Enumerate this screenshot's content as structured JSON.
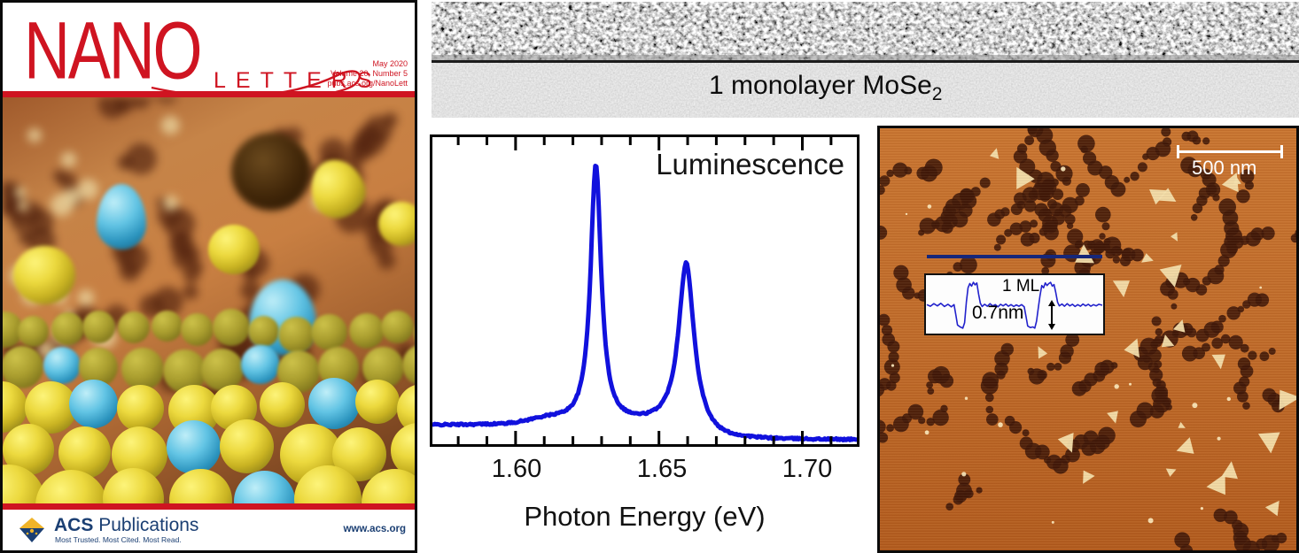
{
  "colors": {
    "nano_red": "#cf1421",
    "acs_navy": "#1b3f73",
    "curve_blue": "#1111dd",
    "afm_base": "#c06a28",
    "afm_pit": "#3c1406",
    "afm_island": "#f6e2ae",
    "profile_line_navy": "#16277a"
  },
  "cover": {
    "masthead": {
      "title_main": "NANO",
      "title_sub": "LETTERS",
      "issue_date": "May 2020",
      "issue_volume": "Volume 20, Number 5",
      "issue_url": "pubs.acs.org/NanoLett"
    },
    "footer": {
      "publisher_bold": "ACS",
      "publisher_rest": "Publications",
      "tagline": "Most Trusted. Most Cited. Most Read.",
      "website": "www.acs.org"
    }
  },
  "tem_panel": {
    "label_main": "1 monolayer MoSe",
    "label_sub": "2"
  },
  "chart_data": {
    "type": "line",
    "annotation": "Luminescence",
    "xlabel": "Photon Energy (eV)",
    "ylabel": "",
    "x_range": [
      1.571,
      1.719
    ],
    "x_ticks": [
      1.6,
      1.65,
      1.7
    ],
    "x_tick_labels": [
      "1.60",
      "1.65",
      "1.70"
    ],
    "x_minor_tick_step": 0.01,
    "y_range": [
      0,
      1.0
    ],
    "grid": false,
    "legend": "none",
    "series": [
      {
        "name": "photoluminescence spectrum",
        "color": "#1111dd",
        "peaks": [
          {
            "center": 1.628,
            "amplitude": 0.88,
            "gamma": 0.00225
          },
          {
            "center": 1.6595,
            "amplitude": 0.55,
            "gamma": 0.0032
          }
        ],
        "baseline": {
          "left_level": 0.052,
          "right_level": 0.002,
          "drop_center": 1.6655,
          "drop_width": 0.0022,
          "shoulder_center": 1.611,
          "shoulder_amplitude": 0.016,
          "shoulder_sigma": 0.009
        }
      }
    ]
  },
  "afm_panel": {
    "scalebar_label": "500 nm",
    "inset": {
      "label_top": "1 ML",
      "label_bottom": "0.7nm",
      "step_height_nm": 0.7,
      "profile_points": [
        [
          0.0,
          0.02
        ],
        [
          0.02,
          -0.03
        ],
        [
          0.04,
          0.05
        ],
        [
          0.06,
          -0.02
        ],
        [
          0.08,
          0.06
        ],
        [
          0.1,
          -0.04
        ],
        [
          0.12,
          0.03
        ],
        [
          0.14,
          -0.05
        ],
        [
          0.155,
          0.02
        ],
        [
          0.165,
          -0.3
        ],
        [
          0.175,
          -0.62
        ],
        [
          0.19,
          -0.68
        ],
        [
          0.205,
          -0.72
        ],
        [
          0.215,
          -0.55
        ],
        [
          0.225,
          0.1
        ],
        [
          0.235,
          0.55
        ],
        [
          0.245,
          0.68
        ],
        [
          0.255,
          0.6
        ],
        [
          0.265,
          0.72
        ],
        [
          0.275,
          0.64
        ],
        [
          0.285,
          0.7
        ],
        [
          0.295,
          0.35
        ],
        [
          0.305,
          0.06
        ],
        [
          0.315,
          -0.04
        ],
        [
          0.33,
          0.03
        ],
        [
          0.345,
          -0.03
        ],
        [
          0.36,
          0.05
        ],
        [
          0.375,
          -0.02
        ],
        [
          0.39,
          0.02
        ],
        [
          0.405,
          -0.05
        ],
        [
          0.42,
          0.03
        ],
        [
          0.435,
          -0.02
        ],
        [
          0.45,
          0.04
        ],
        [
          0.465,
          -0.03
        ],
        [
          0.48,
          0.02
        ],
        [
          0.495,
          -0.04
        ],
        [
          0.51,
          0.01
        ],
        [
          0.525,
          -0.03
        ],
        [
          0.54,
          0.02
        ],
        [
          0.555,
          -0.05
        ],
        [
          0.565,
          -0.35
        ],
        [
          0.575,
          -0.65
        ],
        [
          0.59,
          -0.7
        ],
        [
          0.605,
          -0.68
        ],
        [
          0.615,
          -0.72
        ],
        [
          0.625,
          -0.5
        ],
        [
          0.635,
          -0.1
        ],
        [
          0.645,
          0.3
        ],
        [
          0.655,
          0.62
        ],
        [
          0.665,
          0.55
        ],
        [
          0.675,
          0.7
        ],
        [
          0.685,
          0.62
        ],
        [
          0.695,
          0.68
        ],
        [
          0.705,
          0.72
        ],
        [
          0.715,
          0.6
        ],
        [
          0.725,
          0.65
        ],
        [
          0.735,
          0.4
        ],
        [
          0.745,
          0.1
        ],
        [
          0.755,
          -0.02
        ],
        [
          0.77,
          0.04
        ],
        [
          0.785,
          -0.03
        ],
        [
          0.8,
          0.05
        ],
        [
          0.815,
          -0.02
        ],
        [
          0.83,
          0.03
        ],
        [
          0.845,
          -0.04
        ],
        [
          0.86,
          0.02
        ],
        [
          0.875,
          -0.03
        ],
        [
          0.89,
          0.04
        ],
        [
          0.905,
          -0.02
        ],
        [
          0.92,
          0.03
        ],
        [
          0.935,
          -0.03
        ],
        [
          0.95,
          0.02
        ],
        [
          0.965,
          -0.02
        ],
        [
          0.98,
          0.03
        ],
        [
          1.0,
          0.0
        ]
      ]
    }
  }
}
